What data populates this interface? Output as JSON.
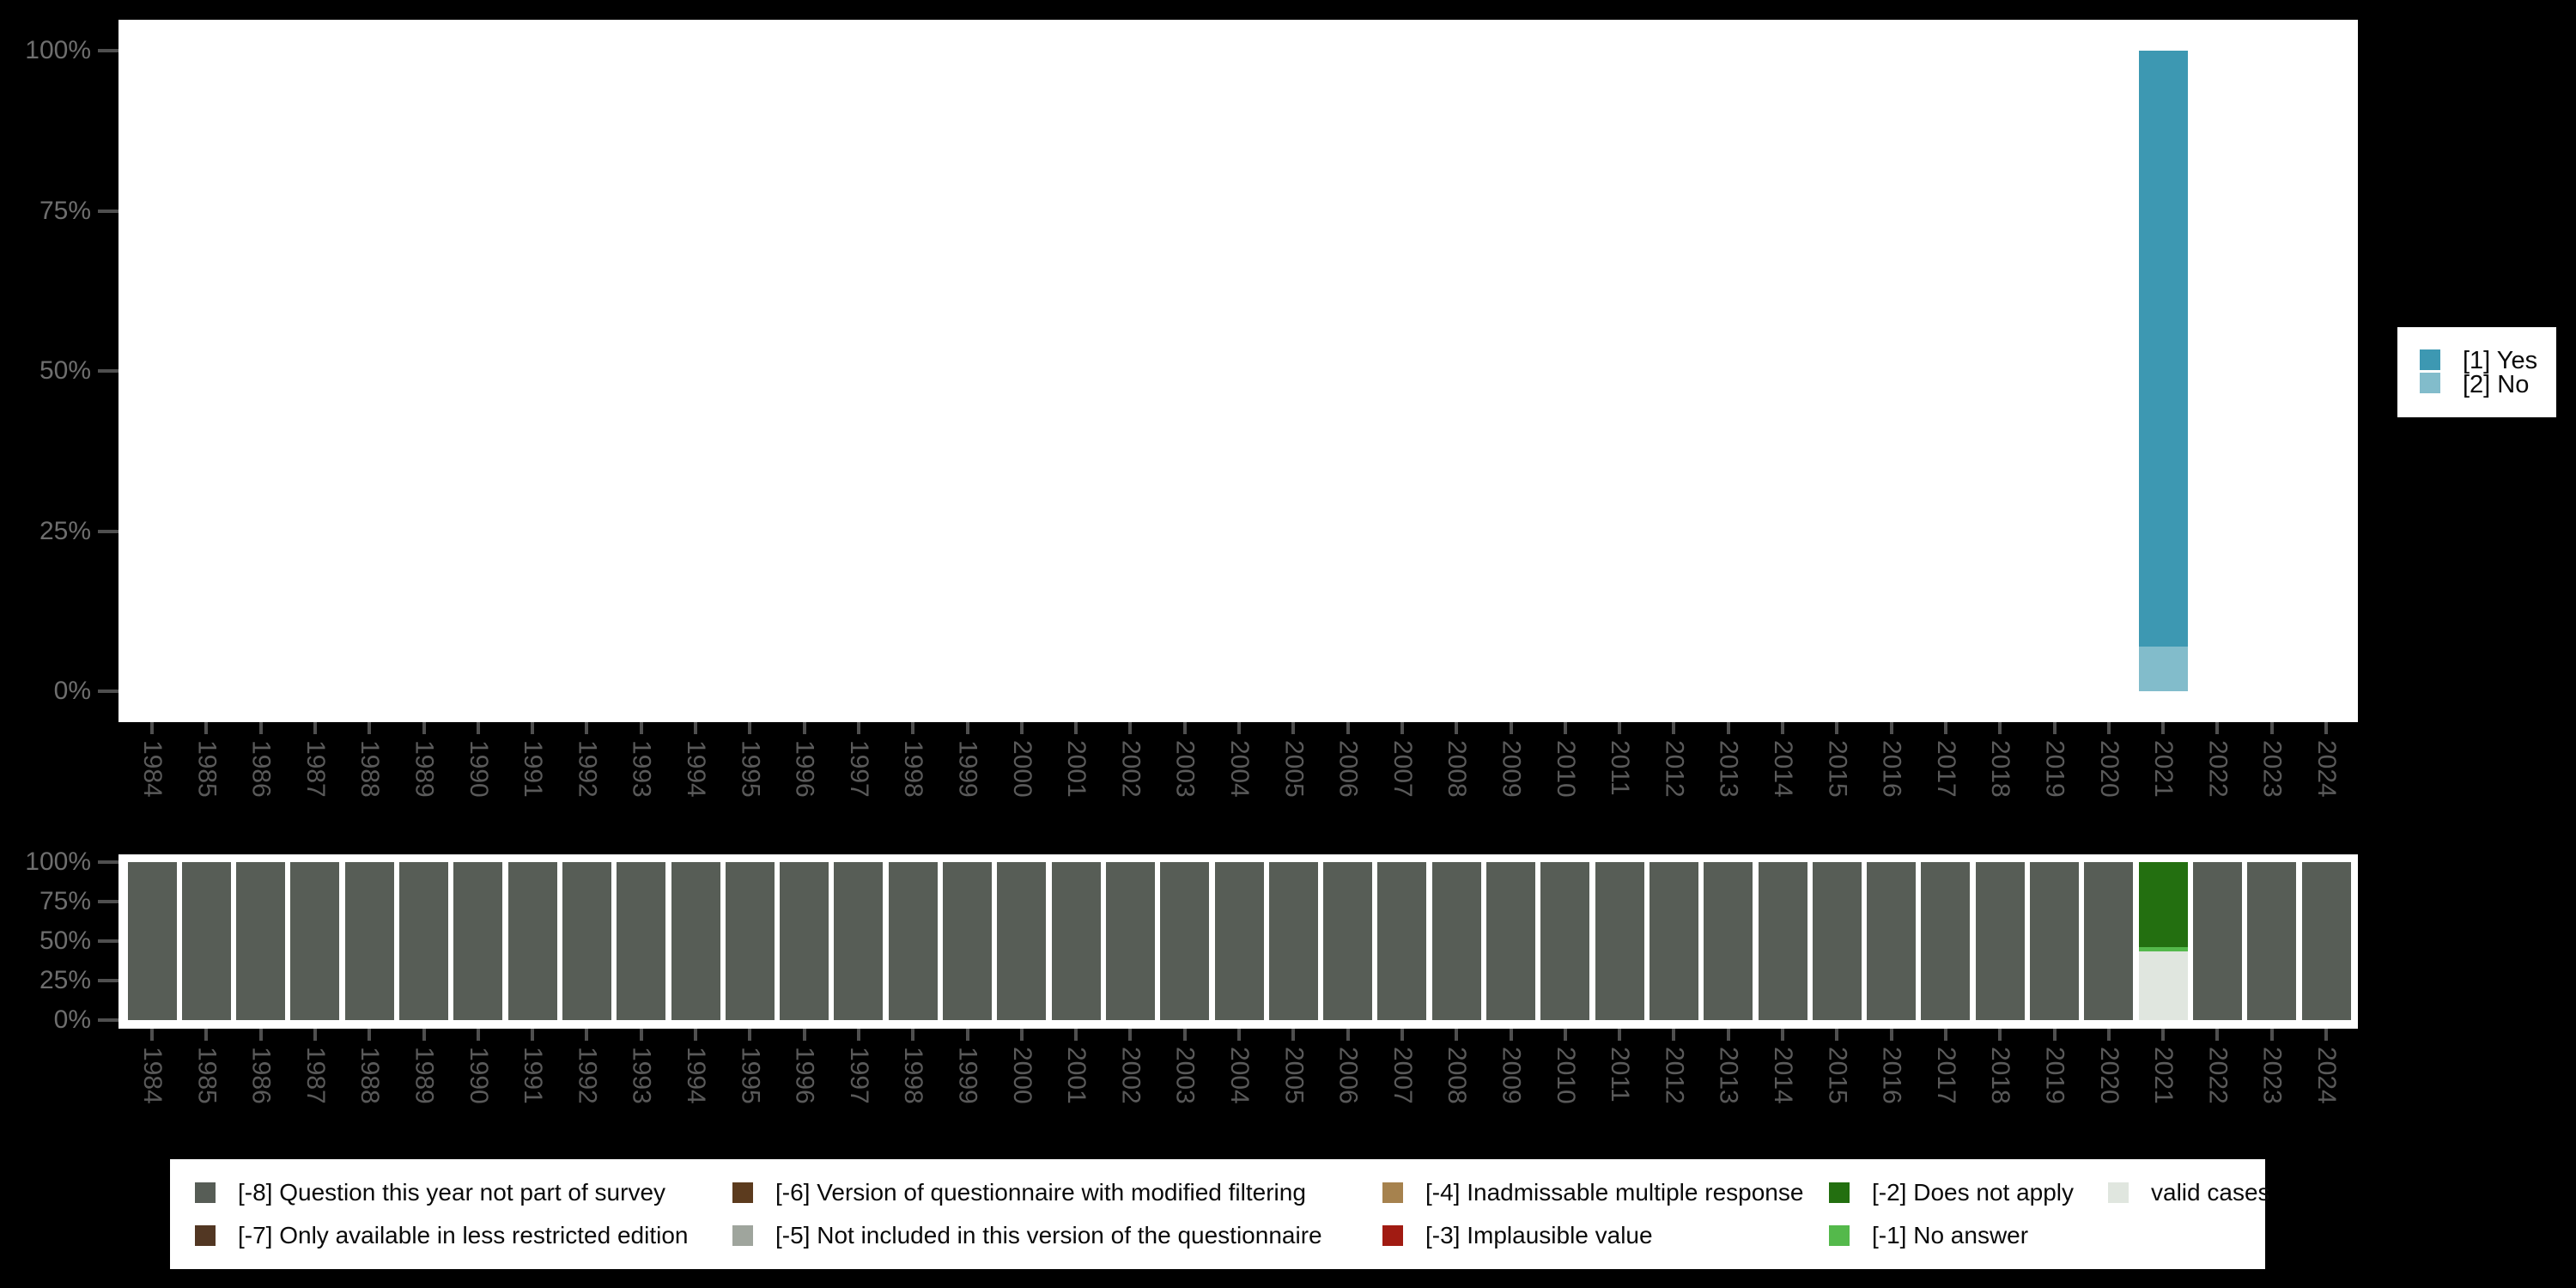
{
  "colors": {
    "background": "#000000",
    "plot_background": "#ffffff",
    "axis_tick": "#4f4f4f",
    "axis_label_percent": "#6e6e6e",
    "axis_label_year": "#5a5a5a",
    "yes": "#3D98B2",
    "no": "#82BCCB",
    "m8": "#575D56",
    "m7": "#523723",
    "m6": "#5C3B1E",
    "m5": "#9FA59D",
    "m4": "#A6824E",
    "m3": "#A11B12",
    "m2": "#236F10",
    "m1": "#54B94B",
    "valid": "#E0E6DF"
  },
  "axis": {
    "percent_tick_labels": [
      "100%",
      "75%",
      "50%",
      "25%",
      "0%"
    ],
    "percent_tick_values": [
      100,
      75,
      50,
      25,
      0
    ]
  },
  "legend_top": {
    "items": [
      {
        "label": "[1] Yes",
        "color": "#3D98B2"
      },
      {
        "label": "[2] No",
        "color": "#82BCCB"
      }
    ]
  },
  "legend_bottom": {
    "items": [
      {
        "col": 1,
        "row": 1,
        "label": "[-8] Question this year not part of survey",
        "color": "#575D56"
      },
      {
        "col": 1,
        "row": 2,
        "label": "[-7] Only available in less restricted edition",
        "color": "#523723"
      },
      {
        "col": 2,
        "row": 1,
        "label": "[-6] Version of questionnaire with modified filtering",
        "color": "#5C3B1E"
      },
      {
        "col": 2,
        "row": 2,
        "label": "[-5] Not included in this version of the questionnaire",
        "color": "#9FA59D"
      },
      {
        "col": 3,
        "row": 1,
        "label": "[-4] Inadmissable multiple response",
        "color": "#A6824E"
      },
      {
        "col": 3,
        "row": 2,
        "label": "[-3] Implausible value",
        "color": "#A11B12"
      },
      {
        "col": 4,
        "row": 1,
        "label": "[-2] Does not apply",
        "color": "#236F10"
      },
      {
        "col": 4,
        "row": 2,
        "label": "[-1] No answer",
        "color": "#54B94B"
      },
      {
        "col": 5,
        "row": 1,
        "label": "valid cases",
        "color": "#E0E6DF"
      }
    ]
  },
  "chart_data": [
    {
      "type": "bar",
      "stacked": true,
      "title": "",
      "xlabel": "",
      "ylabel": "",
      "ylim": [
        0,
        100
      ],
      "grid": false,
      "legend_position": "right",
      "categories": [
        "1984",
        "1985",
        "1986",
        "1987",
        "1988",
        "1989",
        "1990",
        "1991",
        "1992",
        "1993",
        "1994",
        "1995",
        "1996",
        "1997",
        "1998",
        "1999",
        "2000",
        "2001",
        "2002",
        "2003",
        "2004",
        "2005",
        "2006",
        "2007",
        "2008",
        "2009",
        "2010",
        "2011",
        "2012",
        "2013",
        "2014",
        "2015",
        "2016",
        "2017",
        "2018",
        "2019",
        "2020",
        "2021",
        "2022",
        "2023",
        "2024"
      ],
      "series": [
        {
          "name": "[2] No",
          "color": "#82BCCB",
          "default_pct": 0,
          "values_pct_by_year": {
            "2021": 7
          }
        },
        {
          "name": "[1] Yes",
          "color": "#3D98B2",
          "default_pct": 0,
          "values_pct_by_year": {
            "2021": 93
          }
        }
      ],
      "note": "Only the year 2021 has data; all other years are empty. Stack order bottom-to-top."
    },
    {
      "type": "bar",
      "stacked": true,
      "title": "",
      "xlabel": "",
      "ylabel": "",
      "ylim": [
        0,
        100
      ],
      "grid": false,
      "legend_position": "bottom",
      "categories": [
        "1984",
        "1985",
        "1986",
        "1987",
        "1988",
        "1989",
        "1990",
        "1991",
        "1992",
        "1993",
        "1994",
        "1995",
        "1996",
        "1997",
        "1998",
        "1999",
        "2000",
        "2001",
        "2002",
        "2003",
        "2004",
        "2005",
        "2006",
        "2007",
        "2008",
        "2009",
        "2010",
        "2011",
        "2012",
        "2013",
        "2014",
        "2015",
        "2016",
        "2017",
        "2018",
        "2019",
        "2020",
        "2021",
        "2022",
        "2023",
        "2024"
      ],
      "series": [
        {
          "name": "valid cases",
          "color": "#E0E6DF",
          "default_pct": 0,
          "values_pct_by_year": {
            "2021": 43.5
          }
        },
        {
          "name": "[-1] No answer",
          "color": "#54B94B",
          "default_pct": 0,
          "values_pct_by_year": {
            "2021": 2.7
          }
        },
        {
          "name": "[-2] Does not apply",
          "color": "#236F10",
          "default_pct": 0,
          "values_pct_by_year": {
            "2021": 53.8
          }
        },
        {
          "name": "[-8] Question this year not part of survey",
          "color": "#575D56",
          "default_pct": 100,
          "values_pct_by_year": {
            "2021": 0
          }
        }
      ],
      "note": "Every year except 2021 is 100% [-8]. Stack order bottom-to-top."
    }
  ]
}
